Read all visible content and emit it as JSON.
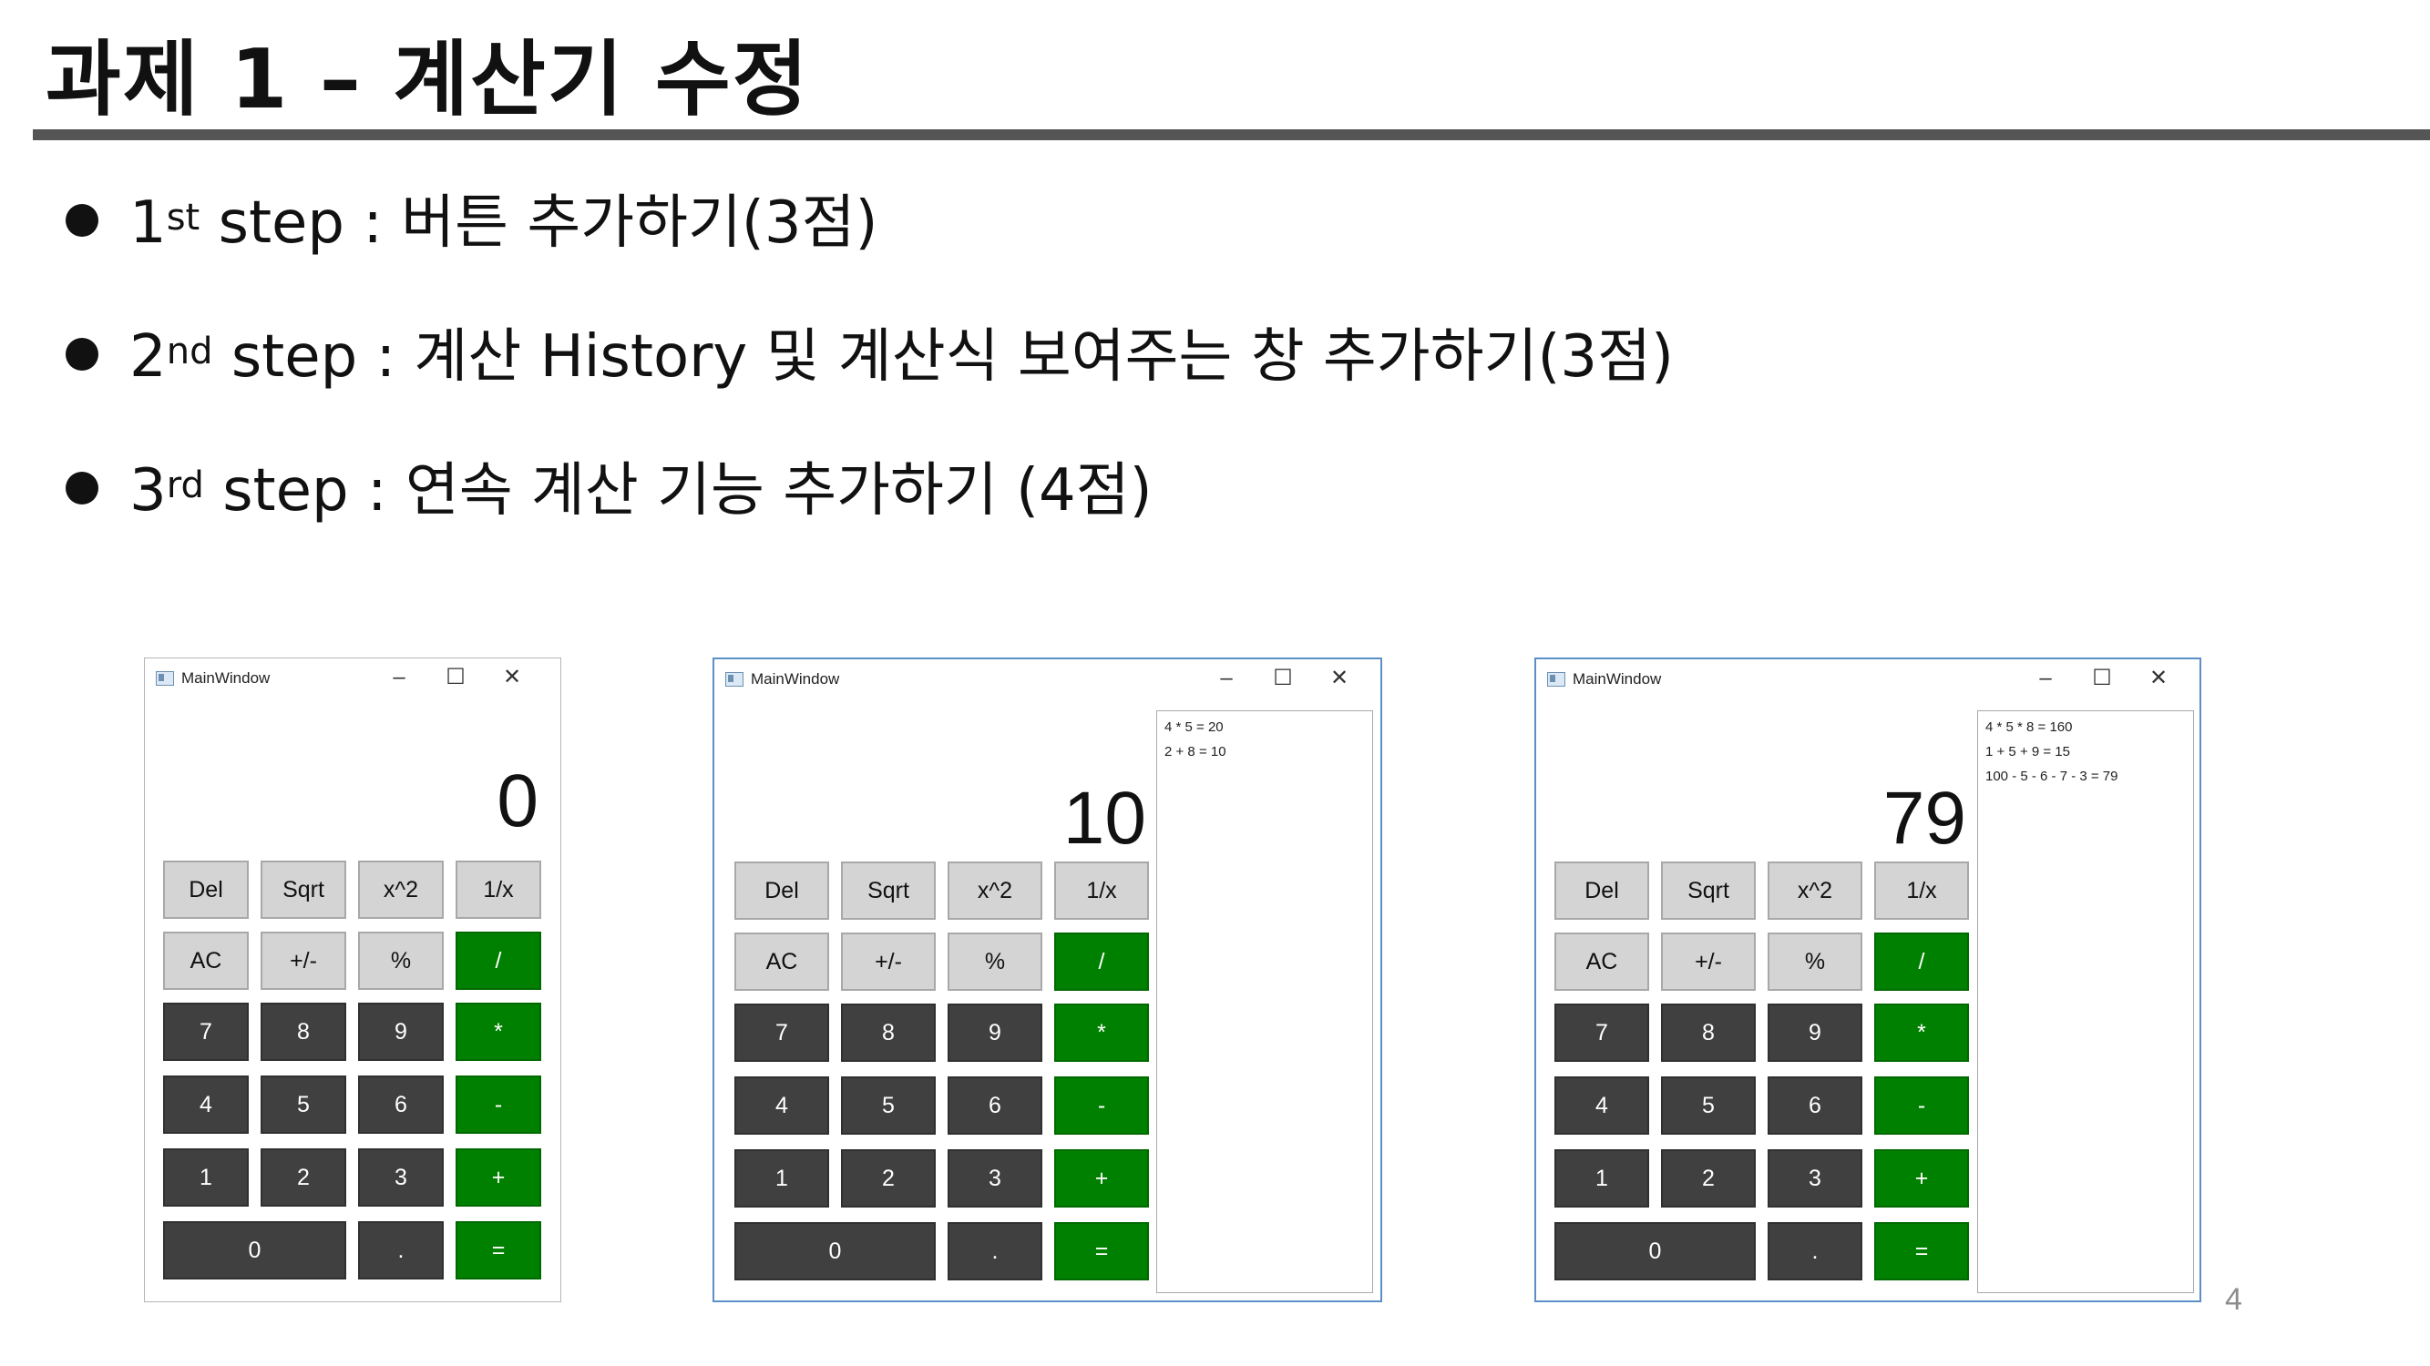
{
  "slide": {
    "title": "과제 1 – 계산기 수정",
    "page_number": "4"
  },
  "bullets": [
    {
      "num": "1",
      "sup": "st",
      "text": " step : 버튼 추가하기(3점)"
    },
    {
      "num": "2",
      "sup": "nd",
      "text": " step : 계산 History 및 계산식 보여주는 창 추가하기(3점)"
    },
    {
      "num": "3",
      "sup": "rd",
      "text": " step : 연속 계산 기능 추가하기 (4점)"
    }
  ],
  "window_title": "MainWindow",
  "window_controls": {
    "minimize": "–",
    "maximize": "☐",
    "close": "✕"
  },
  "buttons": {
    "del": "Del",
    "sqrt": "Sqrt",
    "square": "x^2",
    "reciprocal": "1/x",
    "ac": "AC",
    "negate": "+/-",
    "percent": "%",
    "divide": "/",
    "seven": "7",
    "eight": "8",
    "nine": "9",
    "multiply": "*",
    "four": "4",
    "five": "5",
    "six": "6",
    "subtract": "-",
    "one": "1",
    "two": "2",
    "three": "3",
    "add": "+",
    "zero": "0",
    "dot": ".",
    "equals": "="
  },
  "calculators": [
    {
      "display": "0",
      "history": []
    },
    {
      "display": "10",
      "history": [
        "4 * 5 = 20",
        "2 + 8 = 10"
      ]
    },
    {
      "display": "79",
      "history": [
        "4 * 5 * 8 = 160",
        "1 + 5 + 9 = 15",
        "100 - 5 - 6 - 7 - 3 = 79"
      ]
    }
  ],
  "colors": {
    "operator_green": "#008000",
    "digit_dark": "#404040",
    "function_light": "#d4d4d4",
    "title_rule": "#555555"
  }
}
